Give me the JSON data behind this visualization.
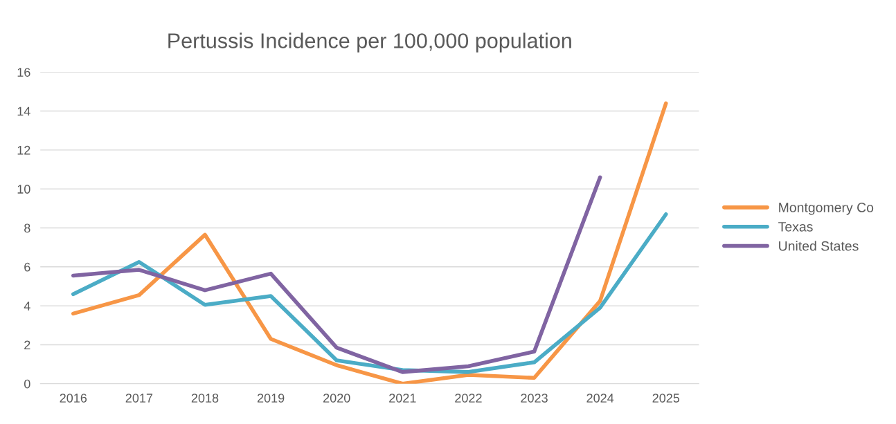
{
  "chart_data": {
    "type": "line",
    "title": "Pertussis Incidence per 100,000 population",
    "categories": [
      "2016",
      "2017",
      "2018",
      "2019",
      "2020",
      "2021",
      "2022",
      "2023",
      "2024",
      "2025"
    ],
    "series": [
      {
        "name": "Montgomery Co",
        "color": "#f79646",
        "values": [
          3.6,
          4.55,
          7.65,
          2.3,
          0.95,
          0.0,
          0.45,
          0.3,
          4.25,
          14.4
        ]
      },
      {
        "name": "Texas",
        "color": "#4bacc6",
        "values": [
          4.6,
          6.25,
          4.05,
          4.5,
          1.2,
          0.7,
          0.6,
          1.1,
          3.9,
          8.7
        ]
      },
      {
        "name": "United States",
        "color": "#8064a2",
        "values": [
          5.55,
          5.85,
          4.8,
          5.65,
          1.85,
          0.6,
          0.9,
          1.65,
          10.6,
          null
        ]
      }
    ],
    "ylim": [
      0,
      16
    ],
    "yticks": [
      0,
      2,
      4,
      6,
      8,
      10,
      12,
      14,
      16
    ],
    "grid": "y",
    "legend": "right",
    "marker": "none",
    "line_style": "solid"
  }
}
